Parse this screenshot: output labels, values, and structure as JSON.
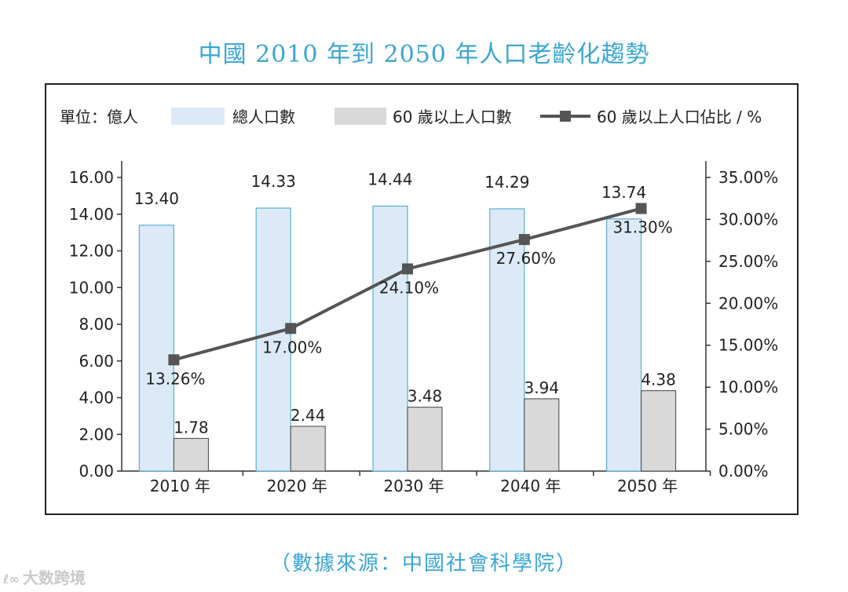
{
  "title": "中國 2010 年到 2050 年人口老齡化趨勢",
  "source_note": "（數據來源：中國社會科學院）",
  "watermark": "大数跨境",
  "colors": {
    "title": "#3aa6d3",
    "bar_total": "#dbeaf6",
    "bar_total_stroke": "#5aaed3",
    "bar_aged": "#d9d9d9",
    "bar_aged_stroke": "#444444",
    "line": "#555555"
  },
  "chart_data": {
    "type": "bar+line",
    "unit_label": "單位：億人",
    "categories": [
      "2010 年",
      "2020 年",
      "2030 年",
      "2040 年",
      "2050 年"
    ],
    "series": [
      {
        "name": "總人口數",
        "type": "bar",
        "axis": "left",
        "values": [
          13.4,
          14.33,
          14.44,
          14.29,
          13.74
        ],
        "labels": [
          "13.40",
          "14.33",
          "14.44",
          "14.29",
          "13.74"
        ]
      },
      {
        "name": "60 歲以上人口數",
        "type": "bar",
        "axis": "left",
        "values": [
          1.78,
          2.44,
          3.48,
          3.94,
          4.38
        ],
        "labels": [
          "1.78",
          "2.44",
          "3.48",
          "3.94",
          "4.38"
        ]
      },
      {
        "name": "60 歲以上人口佔比 / %",
        "type": "line",
        "axis": "right",
        "values": [
          13.26,
          17.0,
          24.1,
          27.6,
          31.3
        ],
        "labels": [
          "13.26%",
          "17.00%",
          "24.10%",
          "27.60%",
          "31.30%"
        ]
      }
    ],
    "y_left": {
      "min": 0,
      "max": 16,
      "ticks": [
        "0.00",
        "2.00",
        "4.00",
        "6.00",
        "8.00",
        "10.00",
        "12.00",
        "14.00",
        "16.00"
      ]
    },
    "y_right": {
      "min": 0,
      "max": 35,
      "ticks": [
        "0.00%",
        "5.00%",
        "10.00%",
        "15.00%",
        "20.00%",
        "25.00%",
        "30.00%",
        "35.00%"
      ]
    },
    "grid": false,
    "legend_position": "top"
  }
}
